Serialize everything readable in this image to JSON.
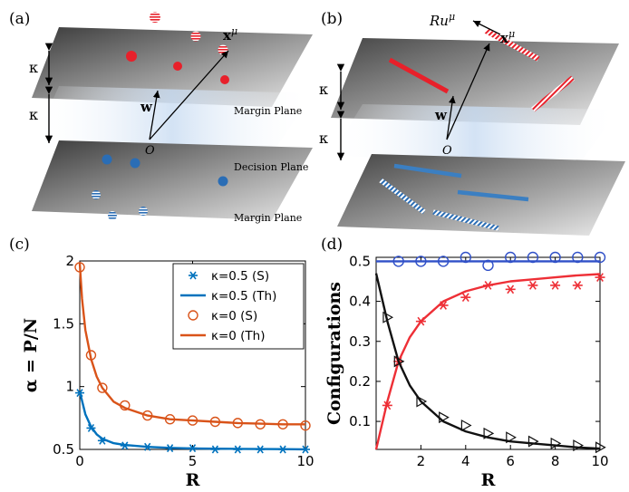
{
  "panel_a": {
    "tag": "(a)",
    "x_label": "x",
    "x_sup": "μ",
    "w_label": "w",
    "origin_label": "O",
    "kappa_top": "κ",
    "kappa_bottom": "κ",
    "margin_plane_top": "Margin Plane",
    "decision_plane": "Decision Plane",
    "margin_plane_bottom": "Margin Plane"
  },
  "panel_b": {
    "tag": "(b)",
    "ru_label": "Ru",
    "ru_sup": "μ",
    "x_label": "x",
    "x_sup": "μ",
    "w_label": "w",
    "origin_label": "O",
    "kappa_top": "κ",
    "kappa_bottom": "κ"
  },
  "colors": {
    "red": "#e8202a",
    "blue": "#2a6db5",
    "chart_blue": "#0072bd",
    "chart_orange": "#d95319",
    "sim_blue": "#3050c8",
    "sim_red": "#ee2f36",
    "sim_black": "#111111"
  },
  "chart_data": [
    {
      "panel": "(c)",
      "type": "line",
      "xlabel": "R",
      "ylabel": "α = P/N",
      "xlim": [
        0,
        10
      ],
      "ylim": [
        0.5,
        2
      ],
      "xticks": [
        "0",
        "5",
        "10"
      ],
      "yticks": [
        "0.5",
        "1",
        "1.5",
        "2"
      ],
      "legend_position": "top-right",
      "legend": [
        "κ=0.5 (S)",
        "κ=0.5 (Th)",
        "κ=0 (S)",
        "κ=0 (Th)"
      ],
      "series": [
        {
          "name": "κ=0.5 (S)",
          "kind": "marker-star",
          "color": "#0072bd",
          "x": [
            0,
            0.5,
            1,
            2,
            3,
            4,
            5,
            6,
            7,
            8,
            9,
            10
          ],
          "y": [
            0.95,
            0.67,
            0.57,
            0.53,
            0.52,
            0.51,
            0.51,
            0.5,
            0.5,
            0.5,
            0.5,
            0.5
          ]
        },
        {
          "name": "κ=0.5 (Th)",
          "kind": "line",
          "color": "#0072bd",
          "x": [
            0,
            0.25,
            0.5,
            0.75,
            1,
            1.5,
            2,
            3,
            4,
            5,
            6,
            7,
            8,
            9,
            10
          ],
          "y": [
            0.96,
            0.78,
            0.68,
            0.62,
            0.585,
            0.55,
            0.535,
            0.52,
            0.512,
            0.508,
            0.506,
            0.504,
            0.503,
            0.502,
            0.501
          ]
        },
        {
          "name": "κ=0 (S)",
          "kind": "marker-circle",
          "color": "#d95319",
          "x": [
            0,
            0.5,
            1,
            2,
            3,
            4,
            5,
            6,
            7,
            8,
            9,
            10
          ],
          "y": [
            1.95,
            1.25,
            0.99,
            0.85,
            0.77,
            0.74,
            0.73,
            0.72,
            0.71,
            0.7,
            0.7,
            0.69
          ]
        },
        {
          "name": "κ=0 (Th)",
          "kind": "line",
          "color": "#d95319",
          "x": [
            0,
            0.1,
            0.25,
            0.5,
            0.75,
            1,
            1.5,
            2,
            3,
            4,
            5,
            6,
            7,
            8,
            9,
            10
          ],
          "y": [
            1.98,
            1.7,
            1.45,
            1.22,
            1.08,
            0.99,
            0.88,
            0.83,
            0.77,
            0.74,
            0.73,
            0.72,
            0.71,
            0.705,
            0.7,
            0.7
          ]
        }
      ]
    },
    {
      "panel": "(d)",
      "type": "line",
      "xlabel": "R",
      "ylabel": "Configurations",
      "xlim": [
        0,
        10
      ],
      "ylim": [
        0.03,
        0.51
      ],
      "xticks": [
        "2",
        "4",
        "6",
        "8",
        "10"
      ],
      "yticks": [
        "0.1",
        "0.2",
        "0.3",
        "0.4",
        "0.5"
      ],
      "series": [
        {
          "kind": "line",
          "color": "#3050c8",
          "x": [
            0,
            10
          ],
          "y": [
            0.5,
            0.5
          ]
        },
        {
          "kind": "marker-circle",
          "color": "#3050c8",
          "x": [
            1,
            2,
            3,
            4,
            5,
            6,
            7,
            8,
            9,
            10
          ],
          "y": [
            0.5,
            0.5,
            0.5,
            0.51,
            0.49,
            0.51,
            0.51,
            0.51,
            0.51,
            0.51
          ]
        },
        {
          "kind": "line",
          "color": "#ee2f36",
          "x": [
            0,
            0.5,
            1,
            1.5,
            2,
            3,
            4,
            5,
            6,
            7,
            8,
            9,
            10
          ],
          "y": [
            0.03,
            0.15,
            0.25,
            0.31,
            0.35,
            0.4,
            0.425,
            0.44,
            0.45,
            0.455,
            0.46,
            0.465,
            0.468
          ]
        },
        {
          "kind": "marker-star",
          "color": "#ee2f36",
          "x": [
            0.5,
            1,
            2,
            3,
            4,
            5,
            6,
            7,
            8,
            9,
            10
          ],
          "y": [
            0.14,
            0.25,
            0.35,
            0.39,
            0.41,
            0.44,
            0.43,
            0.44,
            0.44,
            0.44,
            0.46
          ]
        },
        {
          "kind": "line",
          "color": "#111111",
          "x": [
            0,
            0.5,
            1,
            1.5,
            2,
            3,
            4,
            5,
            6,
            7,
            8,
            9,
            10
          ],
          "y": [
            0.47,
            0.35,
            0.25,
            0.19,
            0.15,
            0.1,
            0.075,
            0.06,
            0.05,
            0.045,
            0.04,
            0.035,
            0.032
          ]
        },
        {
          "kind": "marker-triangle",
          "color": "#111111",
          "x": [
            0.5,
            1,
            2,
            3,
            4,
            5,
            6,
            7,
            8,
            9,
            10
          ],
          "y": [
            0.36,
            0.25,
            0.15,
            0.11,
            0.09,
            0.07,
            0.06,
            0.05,
            0.045,
            0.04,
            0.035
          ]
        }
      ]
    }
  ]
}
